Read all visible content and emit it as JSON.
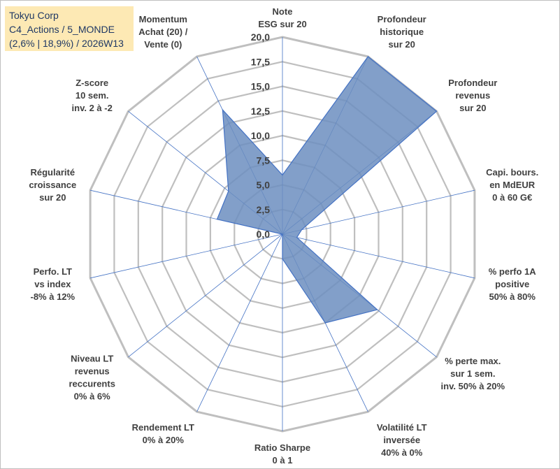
{
  "chart_data": {
    "type": "radar",
    "title_lines": [
      "Tokyu Corp",
      "C4_Actions / 5_MONDE",
      "(2,6% | 18,9%) / 2026W13"
    ],
    "r_range": [
      0,
      20
    ],
    "r_ticks": [
      "0,0",
      "2,5",
      "5,0",
      "7,5",
      "10,0",
      "12,5",
      "15,0",
      "17,5",
      "20,0"
    ],
    "grid": true,
    "fill_color": "#6c8ebf",
    "edge_color": "#4472c4",
    "grid_color": "#bfbfbf",
    "spoke_color": "#4472c4",
    "axes": [
      {
        "lines": [
          "Note",
          "ESG sur 20"
        ],
        "value": 6.0
      },
      {
        "lines": [
          "Profondeur",
          "historique",
          "sur 20"
        ],
        "value": 20.0
      },
      {
        "lines": [
          "Profondeur",
          "revenus",
          "sur 20"
        ],
        "value": 20.0
      },
      {
        "lines": [
          "Capi. bours.",
          "en MdEUR",
          "0 à 60 G€"
        ],
        "value": 2.0
      },
      {
        "lines": [
          "% perfo 1A",
          "positive",
          "50% à 80%"
        ],
        "value": 1.5
      },
      {
        "lines": [
          "% perte max.",
          "sur 1 sem.",
          "inv. 50% à 20%"
        ],
        "value": 12.3
      },
      {
        "lines": [
          "Volatilité LT",
          "inversée",
          "40% à 0%"
        ],
        "value": 10.0
      },
      {
        "lines": [
          "Ratio Sharpe",
          "0 à 1"
        ],
        "value": 2.5
      },
      {
        "lines": [
          "Rendement LT",
          "0% à 20%"
        ],
        "value": 0.0
      },
      {
        "lines": [
          "Niveau LT",
          "revenus",
          "reccurents",
          "0% à 6%"
        ],
        "value": 0.0
      },
      {
        "lines": [
          "Perfo. LT",
          "vs index",
          "-8% à 12%"
        ],
        "value": 0.0
      },
      {
        "lines": [
          "Régularité",
          "croissance",
          "sur 20"
        ],
        "value": 6.8
      },
      {
        "lines": [
          "Z-score",
          "10 sem.",
          "inv. 2 à -2"
        ],
        "value": 7.0
      },
      {
        "lines": [
          "Momentum",
          "Achat (20) /",
          "Vente (0)"
        ],
        "value": 14.0
      }
    ]
  }
}
